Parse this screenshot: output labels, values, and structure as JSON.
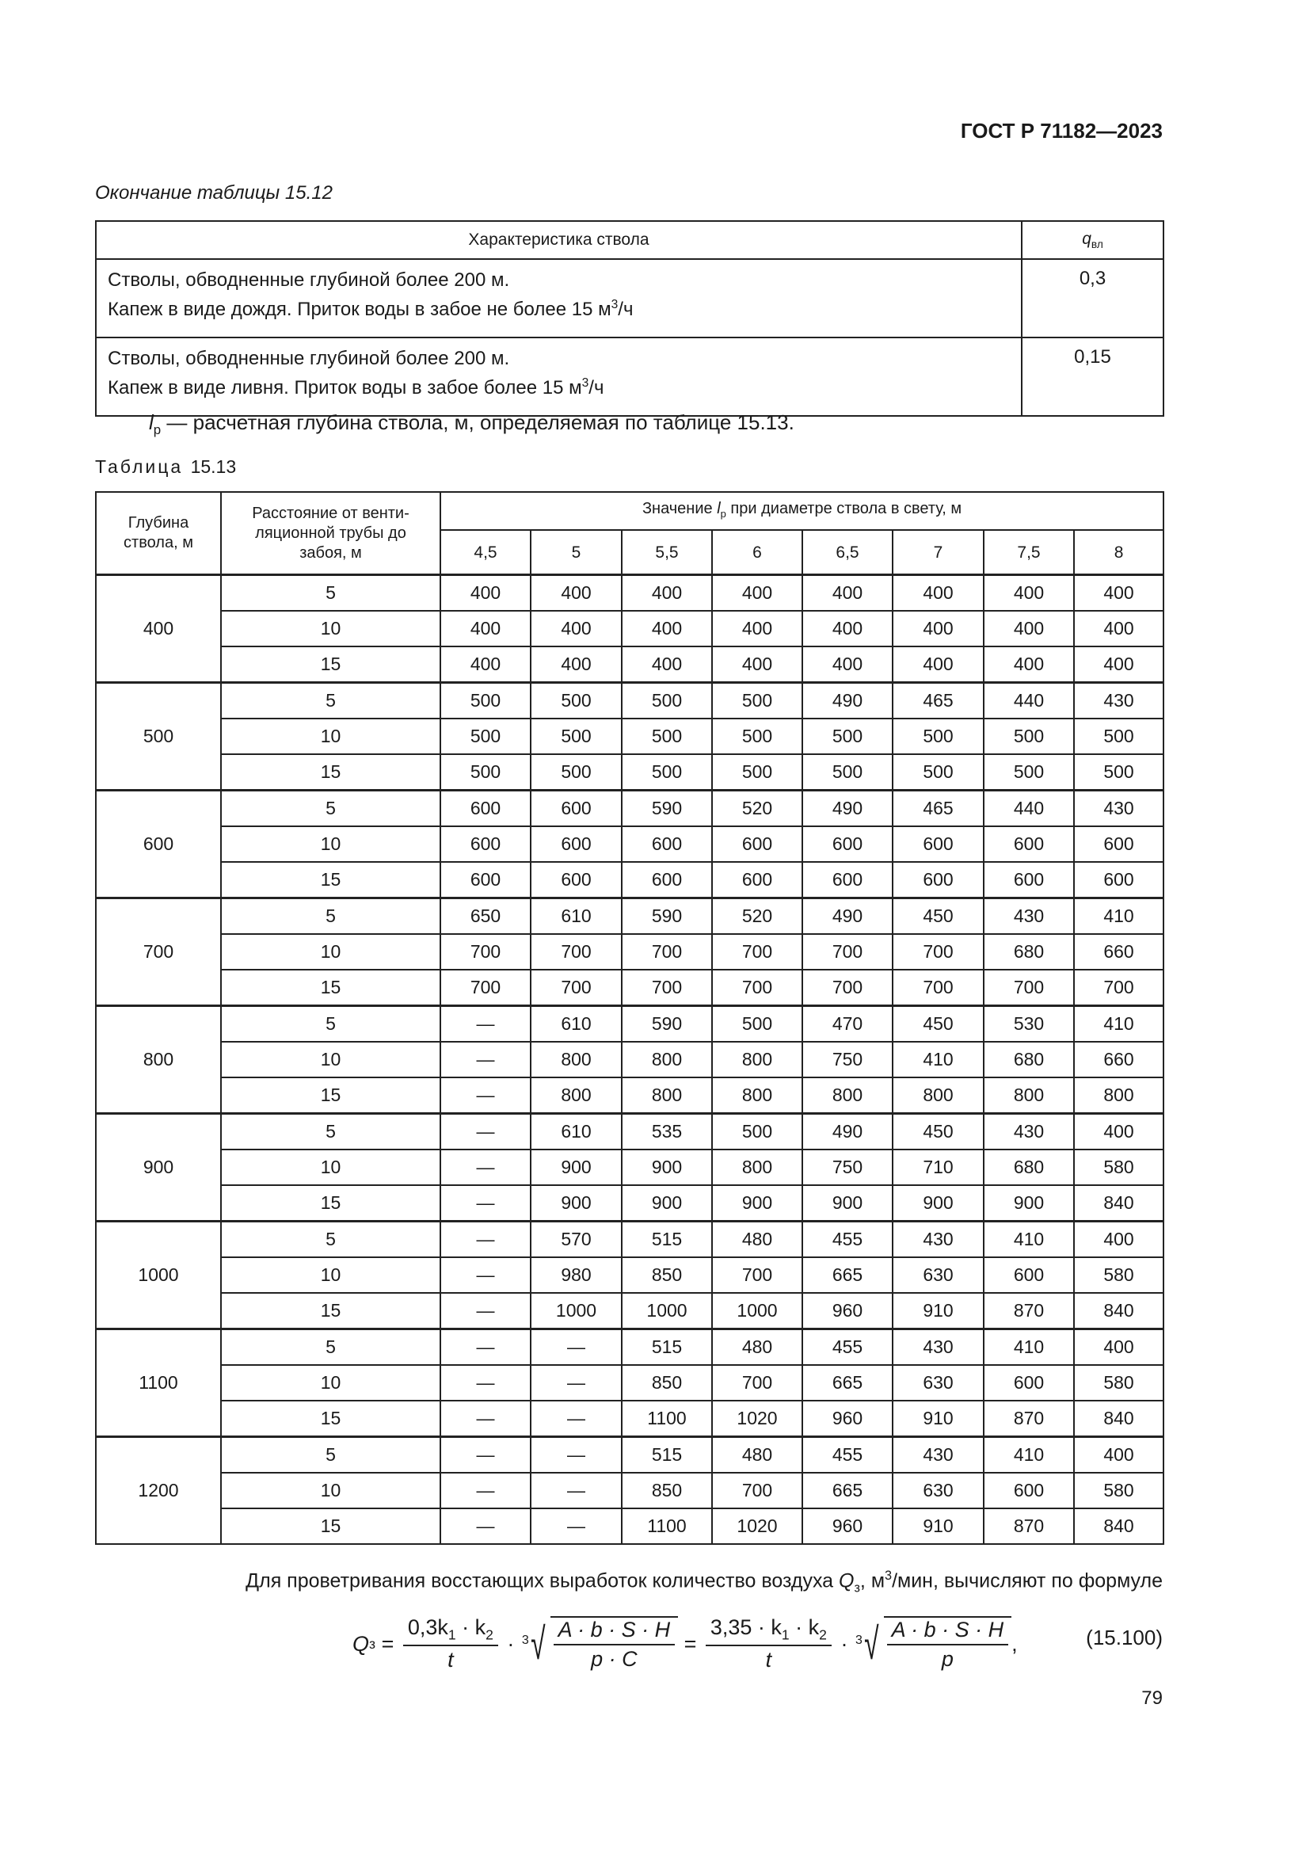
{
  "header": {
    "doc_code": "ГОСТ Р 71182—2023"
  },
  "table_15_12": {
    "caption": "Окончание таблицы 15.12",
    "columns": {
      "characteristic": "Характеристика ствола",
      "q_symbol": "q",
      "q_sub": "вл"
    },
    "rows": [
      {
        "line1": "Стволы, обводненные глубиной более 200 м.",
        "line2": "Капеж в виде дождя. Приток воды в забое не более 15 м",
        "line2_sup": "3",
        "line2_end": "/ч",
        "value": "0,3"
      },
      {
        "line1": "Стволы, обводненные глубиной более 200 м.",
        "line2": "Капеж в виде ливня. Приток воды в забое более 15 м",
        "line2_sup": "3",
        "line2_end": "/ч",
        "value": "0,15"
      }
    ]
  },
  "lp_definition": {
    "symbol": "l",
    "sub": "р",
    "text": " — расчетная глубина ствола, м, определяемая по таблице 15.13."
  },
  "table_15_13": {
    "caption_word": "Таблица",
    "caption_num": "15.13",
    "col_depth": "Глубина ствола, м",
    "col_distance": "Расстояние от венти-ляционной трубы до забоя, м",
    "col_values_pre": "Значение ",
    "col_values_sym": "l",
    "col_values_sub": "р",
    "col_values_post": " при диаметре ствола в свету, м",
    "diameters": [
      "4,5",
      "5",
      "5,5",
      "6",
      "6,5",
      "7",
      "7,5",
      "8"
    ],
    "groups": [
      {
        "depth": "400",
        "rows": [
          {
            "dist": "5",
            "values": [
              "400",
              "400",
              "400",
              "400",
              "400",
              "400",
              "400",
              "400"
            ]
          },
          {
            "dist": "10",
            "values": [
              "400",
              "400",
              "400",
              "400",
              "400",
              "400",
              "400",
              "400"
            ]
          },
          {
            "dist": "15",
            "values": [
              "400",
              "400",
              "400",
              "400",
              "400",
              "400",
              "400",
              "400"
            ]
          }
        ]
      },
      {
        "depth": "500",
        "rows": [
          {
            "dist": "5",
            "values": [
              "500",
              "500",
              "500",
              "500",
              "490",
              "465",
              "440",
              "430"
            ]
          },
          {
            "dist": "10",
            "values": [
              "500",
              "500",
              "500",
              "500",
              "500",
              "500",
              "500",
              "500"
            ]
          },
          {
            "dist": "15",
            "values": [
              "500",
              "500",
              "500",
              "500",
              "500",
              "500",
              "500",
              "500"
            ]
          }
        ]
      },
      {
        "depth": "600",
        "rows": [
          {
            "dist": "5",
            "values": [
              "600",
              "600",
              "590",
              "520",
              "490",
              "465",
              "440",
              "430"
            ]
          },
          {
            "dist": "10",
            "values": [
              "600",
              "600",
              "600",
              "600",
              "600",
              "600",
              "600",
              "600"
            ]
          },
          {
            "dist": "15",
            "values": [
              "600",
              "600",
              "600",
              "600",
              "600",
              "600",
              "600",
              "600"
            ]
          }
        ]
      },
      {
        "depth": "700",
        "rows": [
          {
            "dist": "5",
            "values": [
              "650",
              "610",
              "590",
              "520",
              "490",
              "450",
              "430",
              "410"
            ]
          },
          {
            "dist": "10",
            "values": [
              "700",
              "700",
              "700",
              "700",
              "700",
              "700",
              "680",
              "660"
            ]
          },
          {
            "dist": "15",
            "values": [
              "700",
              "700",
              "700",
              "700",
              "700",
              "700",
              "700",
              "700"
            ]
          }
        ]
      },
      {
        "depth": "800",
        "rows": [
          {
            "dist": "5",
            "values": [
              "—",
              "610",
              "590",
              "500",
              "470",
              "450",
              "530",
              "410"
            ]
          },
          {
            "dist": "10",
            "values": [
              "—",
              "800",
              "800",
              "800",
              "750",
              "410",
              "680",
              "660"
            ]
          },
          {
            "dist": "15",
            "values": [
              "—",
              "800",
              "800",
              "800",
              "800",
              "800",
              "800",
              "800"
            ]
          }
        ]
      },
      {
        "depth": "900",
        "rows": [
          {
            "dist": "5",
            "values": [
              "—",
              "610",
              "535",
              "500",
              "490",
              "450",
              "430",
              "400"
            ]
          },
          {
            "dist": "10",
            "values": [
              "—",
              "900",
              "900",
              "800",
              "750",
              "710",
              "680",
              "580"
            ]
          },
          {
            "dist": "15",
            "values": [
              "—",
              "900",
              "900",
              "900",
              "900",
              "900",
              "900",
              "840"
            ]
          }
        ]
      },
      {
        "depth": "1000",
        "rows": [
          {
            "dist": "5",
            "values": [
              "—",
              "570",
              "515",
              "480",
              "455",
              "430",
              "410",
              "400"
            ]
          },
          {
            "dist": "10",
            "values": [
              "—",
              "980",
              "850",
              "700",
              "665",
              "630",
              "600",
              "580"
            ]
          },
          {
            "dist": "15",
            "values": [
              "—",
              "1000",
              "1000",
              "1000",
              "960",
              "910",
              "870",
              "840"
            ]
          }
        ]
      },
      {
        "depth": "1100",
        "rows": [
          {
            "dist": "5",
            "values": [
              "—",
              "—",
              "515",
              "480",
              "455",
              "430",
              "410",
              "400"
            ]
          },
          {
            "dist": "10",
            "values": [
              "—",
              "—",
              "850",
              "700",
              "665",
              "630",
              "600",
              "580"
            ]
          },
          {
            "dist": "15",
            "values": [
              "—",
              "—",
              "1100",
              "1020",
              "960",
              "910",
              "870",
              "840"
            ]
          }
        ]
      },
      {
        "depth": "1200",
        "rows": [
          {
            "dist": "5",
            "values": [
              "—",
              "—",
              "515",
              "480",
              "455",
              "430",
              "410",
              "400"
            ]
          },
          {
            "dist": "10",
            "values": [
              "—",
              "—",
              "850",
              "700",
              "665",
              "630",
              "600",
              "580"
            ]
          },
          {
            "dist": "15",
            "values": [
              "—",
              "—",
              "1100",
              "1020",
              "960",
              "910",
              "870",
              "840"
            ]
          }
        ]
      }
    ]
  },
  "paragraph": {
    "pre": "Для проветривания восстающих выработок количество воздуха ",
    "sym": "Q",
    "sub": "з",
    "mid": ", м",
    "sup": "3",
    "post": "/мин, вычисляют по формуле"
  },
  "formula": {
    "lhs": "Q",
    "lhs_sub": "з",
    "eq": " = ",
    "f1_num": "0,3k",
    "f1_num_sub1": "1",
    "f1_num_mid": " · k",
    "f1_num_sub2": "2",
    "f1_den": "t",
    "dot": " · ",
    "root_index": "3",
    "r1_num": "A · b · S · H",
    "r1_den": "p · C",
    "eq2": " = ",
    "f2_num": "3,35 · k",
    "f2_num_sub1": "1",
    "f2_num_mid": " · k",
    "f2_num_sub2": "2",
    "f2_den": "t",
    "r2_num": "A · b · S · H",
    "r2_den": "p",
    "comma": ","
  },
  "equation_number": "(15.100)",
  "page_number": "79"
}
